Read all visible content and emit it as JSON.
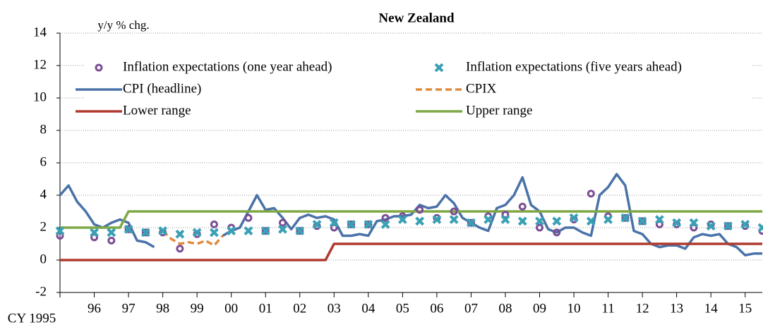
{
  "chart_data": {
    "type": "line",
    "title": "New Zealand",
    "y_axis_label": "y/y % chg.",
    "x": [
      1995,
      1995.25,
      1995.5,
      1995.75,
      1996,
      1996.25,
      1996.5,
      1996.75,
      1997,
      1997.25,
      1997.5,
      1997.75,
      1998,
      1998.25,
      1998.5,
      1998.75,
      1999,
      1999.25,
      1999.5,
      1999.75,
      2000,
      2000.25,
      2000.5,
      2000.75,
      2001,
      2001.25,
      2001.5,
      2001.75,
      2002,
      2002.25,
      2002.5,
      2002.75,
      2003,
      2003.25,
      2003.5,
      2003.75,
      2004,
      2004.25,
      2004.5,
      2004.75,
      2005,
      2005.25,
      2005.5,
      2005.75,
      2006,
      2006.25,
      2006.5,
      2006.75,
      2007,
      2007.25,
      2007.5,
      2007.75,
      2008,
      2008.25,
      2008.5,
      2008.75,
      2009,
      2009.25,
      2009.5,
      2009.75,
      2010,
      2010.25,
      2010.5,
      2010.75,
      2011,
      2011.25,
      2011.5,
      2011.75,
      2012,
      2012.25,
      2012.5,
      2012.75,
      2013,
      2013.25,
      2013.5,
      2013.75,
      2014,
      2014.25,
      2014.5,
      2014.75,
      2015,
      2015.25,
      2015.5
    ],
    "series": [
      {
        "name": "Inflation expectations (one year ahead)",
        "type": "scatter",
        "marker": "circle",
        "color": "#7b4d95",
        "x": [
          1995,
          1995.5,
          1996,
          1996.5,
          1997,
          1997.5,
          1998,
          1998.5,
          1999,
          1999.5,
          2000,
          2000.5,
          2001,
          2001.5,
          2002,
          2002.5,
          2003,
          2003.5,
          2004,
          2004.5,
          2005,
          2005.5,
          2006,
          2006.5,
          2007,
          2007.5,
          2008,
          2008.5,
          2009,
          2009.5,
          2010,
          2010.5,
          2011,
          2011.5,
          2012,
          2012.5,
          2013,
          2013.5,
          2014,
          2014.5,
          2015,
          2015.5
        ],
        "values": [
          1.5,
          null,
          1.4,
          1.2,
          1.9,
          1.7,
          1.7,
          0.7,
          1.6,
          2.2,
          2.0,
          2.6,
          1.8,
          2.3,
          1.8,
          2.1,
          2.0,
          2.2,
          2.2,
          2.6,
          2.7,
          3.1,
          2.6,
          3.0,
          2.3,
          2.7,
          2.8,
          3.3,
          2.0,
          1.7,
          2.5,
          4.1,
          2.7,
          2.6,
          2.4,
          2.2,
          2.2,
          2.0,
          2.2,
          2.1,
          2.1,
          1.8
        ]
      },
      {
        "name": "Inflation expectations (five years ahead)",
        "type": "scatter",
        "marker": "x",
        "color": "#3aa0b5",
        "x": [
          1995,
          1995.5,
          1996,
          1996.5,
          1997,
          1997.5,
          1998,
          1998.5,
          1999,
          1999.5,
          2000,
          2000.5,
          2001,
          2001.5,
          2002,
          2002.5,
          2003,
          2003.5,
          2004,
          2004.5,
          2005,
          2005.5,
          2006,
          2006.5,
          2007,
          2007.5,
          2008,
          2008.5,
          2009,
          2009.5,
          2010,
          2010.5,
          2011,
          2011.5,
          2012,
          2012.5,
          2013,
          2013.5,
          2014,
          2014.5,
          2015,
          2015.5
        ],
        "values": [
          1.8,
          null,
          1.7,
          1.7,
          1.9,
          1.7,
          1.8,
          1.6,
          1.7,
          1.7,
          1.8,
          1.8,
          1.8,
          1.9,
          1.8,
          2.2,
          2.3,
          2.2,
          2.2,
          2.2,
          2.5,
          2.4,
          2.5,
          2.5,
          2.3,
          2.5,
          2.5,
          2.4,
          2.4,
          2.4,
          2.6,
          2.4,
          2.5,
          2.6,
          2.4,
          2.5,
          2.3,
          2.3,
          2.1,
          2.1,
          2.2,
          2.0
        ]
      },
      {
        "name": "CPI (headline)",
        "type": "line",
        "color": "#4a72a8",
        "values": [
          4.0,
          4.6,
          3.6,
          3.0,
          2.2,
          2.0,
          2.3,
          2.5,
          2.3,
          1.2,
          1.1,
          0.8,
          null,
          null,
          null,
          null,
          null,
          null,
          null,
          1.5,
          1.8,
          2.0,
          3.0,
          4.0,
          3.1,
          3.2,
          2.6,
          1.9,
          2.6,
          2.8,
          2.6,
          2.7,
          2.5,
          1.5,
          1.5,
          1.6,
          1.5,
          2.4,
          2.5,
          2.7,
          2.7,
          2.8,
          3.4,
          3.2,
          3.3,
          4.0,
          3.5,
          2.6,
          2.3,
          2.0,
          1.8,
          3.2,
          3.4,
          4.0,
          5.1,
          3.4,
          3.0,
          1.9,
          1.7,
          2.0,
          2.0,
          1.7,
          1.5,
          4.0,
          4.5,
          5.3,
          4.6,
          1.8,
          1.6,
          1.0,
          0.8,
          0.9,
          0.9,
          0.7,
          1.4,
          1.6,
          1.5,
          1.6,
          1.0,
          0.8,
          0.3,
          0.4,
          0.4
        ]
      },
      {
        "name": "CPIX",
        "type": "line",
        "dash": true,
        "color": "#e08a3c",
        "values": [
          null,
          null,
          null,
          null,
          null,
          null,
          null,
          null,
          null,
          null,
          null,
          null,
          1.8,
          1.3,
          1.0,
          1.1,
          1.0,
          1.2,
          0.9,
          1.5,
          null,
          null,
          null,
          null,
          null,
          null,
          null,
          null,
          null,
          null,
          null,
          null,
          null,
          null,
          null,
          null,
          null,
          null,
          null,
          null,
          null,
          null,
          null,
          null,
          null,
          null,
          null,
          null,
          null,
          null,
          null,
          null,
          null,
          null,
          null,
          null,
          null,
          null,
          null,
          null,
          null,
          null,
          null,
          null,
          null,
          null,
          null,
          null,
          null,
          null,
          null,
          null,
          null,
          null,
          null,
          null,
          null,
          null,
          null,
          null,
          null,
          null,
          null
        ]
      },
      {
        "name": "Lower range",
        "type": "line",
        "color": "#b03a2e",
        "values": [
          0,
          0,
          0,
          0,
          0,
          0,
          0,
          0,
          0,
          0,
          0,
          0,
          0,
          0,
          0,
          0,
          0,
          0,
          0,
          0,
          0,
          0,
          0,
          0,
          0,
          0,
          0,
          0,
          0,
          0,
          0,
          0,
          1,
          1,
          1,
          1,
          1,
          1,
          1,
          1,
          1,
          1,
          1,
          1,
          1,
          1,
          1,
          1,
          1,
          1,
          1,
          1,
          1,
          1,
          1,
          1,
          1,
          1,
          1,
          1,
          1,
          1,
          1,
          1,
          1,
          1,
          1,
          1,
          1,
          1,
          1,
          1,
          1,
          1,
          1,
          1,
          1,
          1,
          1,
          1,
          1,
          1,
          1
        ]
      },
      {
        "name": "Upper range",
        "type": "line",
        "color": "#7fa844",
        "values": [
          2,
          2,
          2,
          2,
          2,
          2,
          2,
          2,
          3,
          3,
          3,
          3,
          3,
          3,
          3,
          3,
          3,
          3,
          3,
          3,
          3,
          3,
          3,
          3,
          3,
          3,
          3,
          3,
          3,
          3,
          3,
          3,
          3,
          3,
          3,
          3,
          3,
          3,
          3,
          3,
          3,
          3,
          3,
          3,
          3,
          3,
          3,
          3,
          3,
          3,
          3,
          3,
          3,
          3,
          3,
          3,
          3,
          3,
          3,
          3,
          3,
          3,
          3,
          3,
          3,
          3,
          3,
          3,
          3,
          3,
          3,
          3,
          3,
          3,
          3,
          3,
          3,
          3,
          3,
          3,
          3,
          3,
          3
        ]
      }
    ],
    "xlim": [
      1995,
      2015.5
    ],
    "xticks": [
      {
        "value": 1995,
        "label": "CY 1995"
      },
      {
        "value": 1996,
        "label": "96"
      },
      {
        "value": 1997,
        "label": "97"
      },
      {
        "value": 1998,
        "label": "98"
      },
      {
        "value": 1999,
        "label": "99"
      },
      {
        "value": 2000,
        "label": "00"
      },
      {
        "value": 2001,
        "label": "01"
      },
      {
        "value": 2002,
        "label": "02"
      },
      {
        "value": 2003,
        "label": "03"
      },
      {
        "value": 2004,
        "label": "04"
      },
      {
        "value": 2005,
        "label": "05"
      },
      {
        "value": 2006,
        "label": "06"
      },
      {
        "value": 2007,
        "label": "07"
      },
      {
        "value": 2008,
        "label": "08"
      },
      {
        "value": 2009,
        "label": "09"
      },
      {
        "value": 2010,
        "label": "10"
      },
      {
        "value": 2011,
        "label": "11"
      },
      {
        "value": 2012,
        "label": "12"
      },
      {
        "value": 2013,
        "label": "13"
      },
      {
        "value": 2014,
        "label": "14"
      },
      {
        "value": 2015,
        "label": "15"
      }
    ],
    "ylim": [
      -2,
      14
    ],
    "yticks": [
      -2,
      0,
      2,
      4,
      6,
      8,
      10,
      12,
      14
    ],
    "grid": true,
    "legend": "top"
  }
}
